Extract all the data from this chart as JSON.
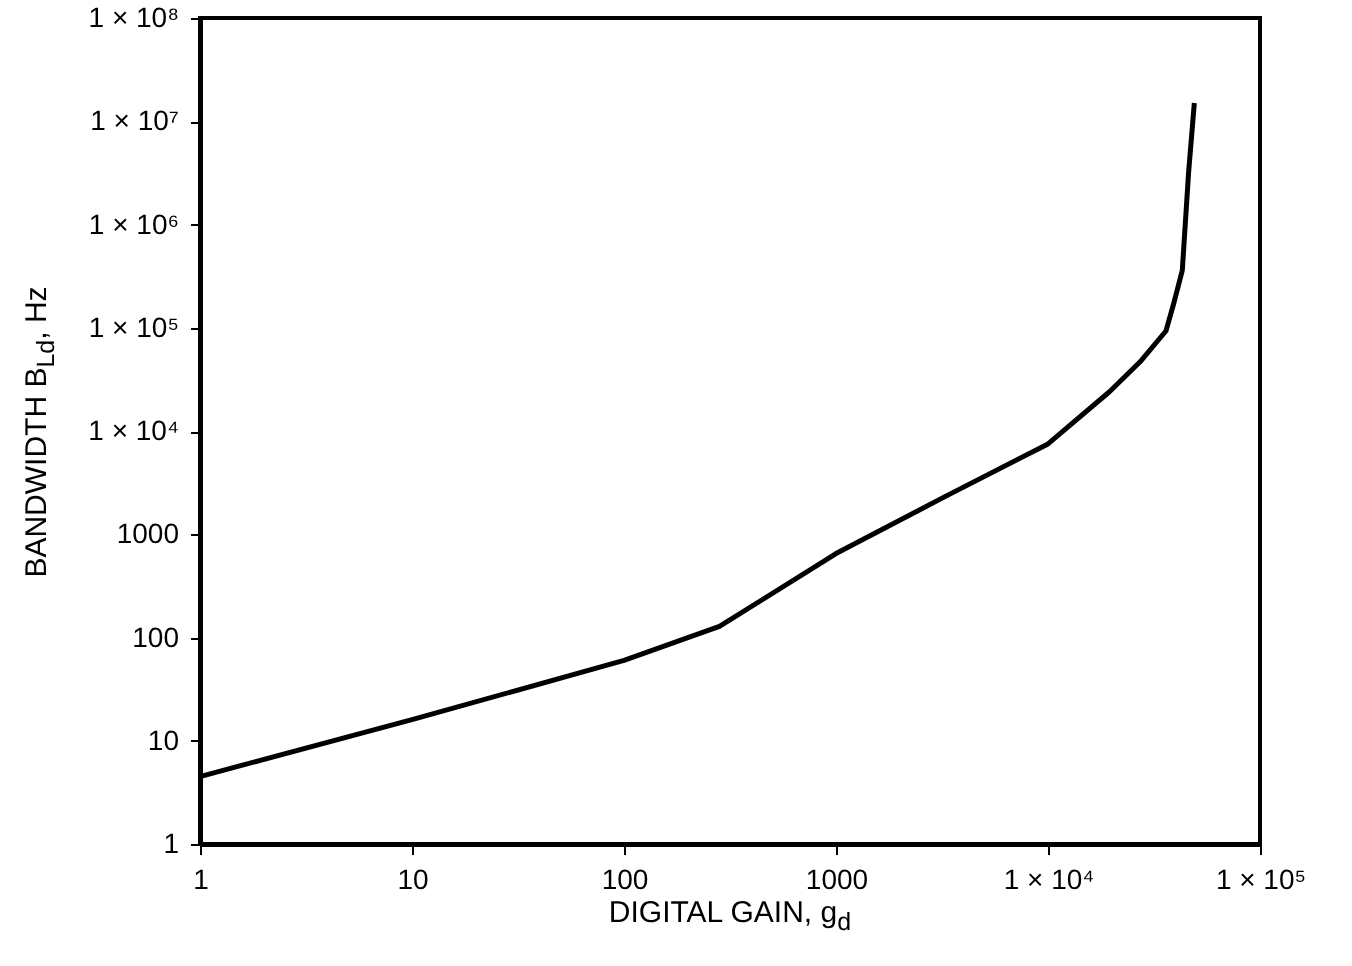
{
  "chart_data": {
    "type": "line",
    "xlabel": "DIGITAL GAIN, g$_{d}$",
    "ylabel": "BANDWIDTH B$_{Ld}$, Hz",
    "x": [
      1,
      10,
      100,
      282,
      1000,
      3300,
      10000,
      19500,
      27500,
      36000,
      39000,
      43000,
      46000,
      49000
    ],
    "series": [
      {
        "color": "#000000",
        "values": [
          4.5,
          16,
          60,
          128,
          650,
          2340,
          7500,
          24000,
          48000,
          93000,
          166000,
          360000,
          3100000,
          15000000
        ]
      }
    ],
    "log": "xy",
    "grid": false,
    "marker": "none",
    "line_style": "solid",
    "xlim": [
      1,
      100000
    ],
    "xticks": [
      1,
      10,
      100,
      1000,
      {
        "value": 10000,
        "label": "1 × 10⁴"
      },
      {
        "value": 100000,
        "label": "1 × 10⁵"
      }
    ],
    "ylim": [
      1,
      100000000
    ],
    "yticks": [
      1,
      10,
      100,
      1000,
      {
        "value": 10000,
        "label": "1 × 10⁴"
      },
      {
        "value": 100000,
        "label": "1 × 10⁵"
      },
      {
        "value": 1000000,
        "label": "1 × 10⁶"
      },
      {
        "value": 10000000,
        "label": "1 × 10⁷"
      },
      {
        "value": 100000000,
        "label": "1 × 10⁸"
      }
    ]
  }
}
